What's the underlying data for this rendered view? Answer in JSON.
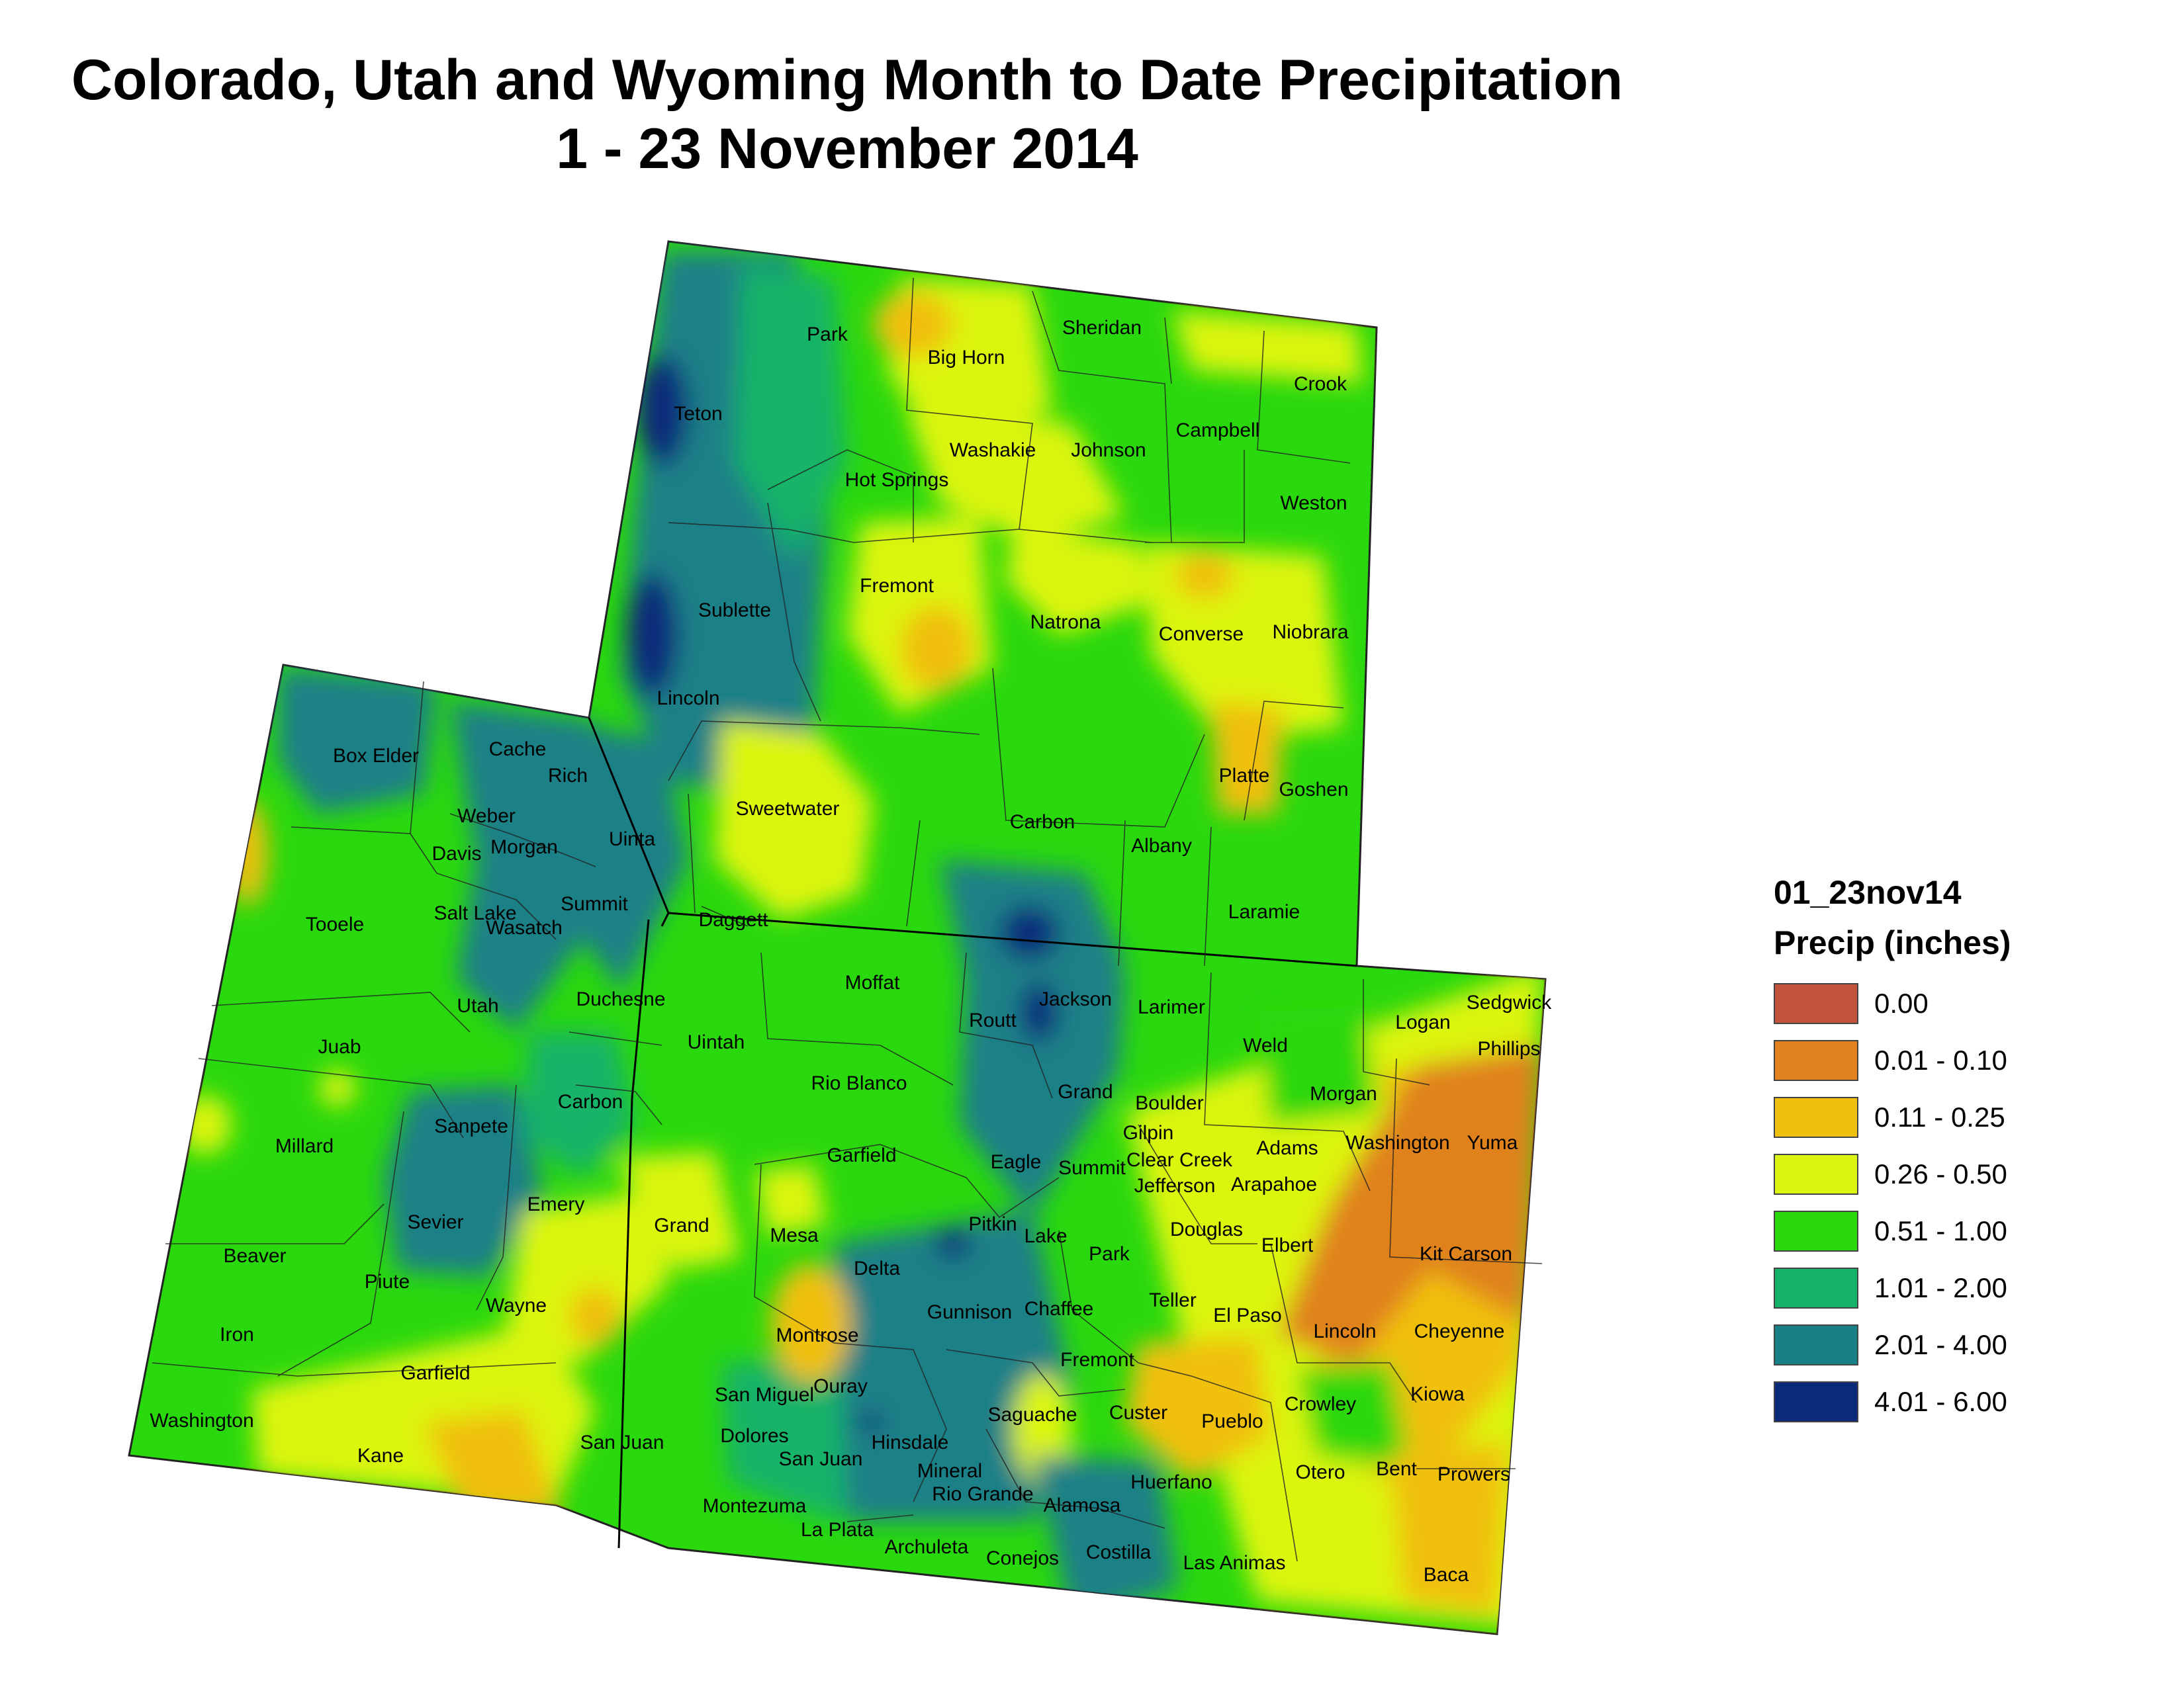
{
  "title": {
    "line1": "Colorado, Utah and Wyoming Month to Date Precipitation",
    "line2": "1 - 23 November 2014"
  },
  "legend": {
    "layer": "01_23nov14",
    "units": "Precip (inches)",
    "classes": [
      {
        "label": "0.00",
        "color": "#c2523c"
      },
      {
        "label": "0.01 - 0.10",
        "color": "#e0821e"
      },
      {
        "label": "0.11 - 0.25",
        "color": "#f0c00e"
      },
      {
        "label": "0.26 - 0.50",
        "color": "#dcf50e"
      },
      {
        "label": "0.51 - 1.00",
        "color": "#2ad80e"
      },
      {
        "label": "1.01 - 2.00",
        "color": "#14b368"
      },
      {
        "label": "2.01 - 4.00",
        "color": "#1a8087"
      },
      {
        "label": "4.01 - 6.00",
        "color": "#0c2a7a"
      }
    ]
  },
  "counties": {
    "wyoming": [
      "Park",
      "Big Horn",
      "Sheridan",
      "Crook",
      "Teton",
      "Campbell",
      "Washakie",
      "Johnson",
      "Hot Springs",
      "Weston",
      "Fremont",
      "Sublette",
      "Natrona",
      "Converse",
      "Niobrara",
      "Lincoln",
      "Platte",
      "Goshen",
      "Sweetwater",
      "Carbon",
      "Albany",
      "Uinta",
      "Laramie"
    ],
    "utah": [
      "Box Elder",
      "Cache",
      "Rich",
      "Weber",
      "Davis",
      "Morgan",
      "Tooele",
      "Salt Lake",
      "Summit",
      "Daggett",
      "Wasatch",
      "Utah",
      "Duchesne",
      "Uintah",
      "Juab",
      "Carbon",
      "Millard",
      "Sanpete",
      "Emery",
      "Sevier",
      "Grand",
      "Beaver",
      "Piute",
      "Wayne",
      "Iron",
      "Garfield",
      "San Juan",
      "Washington",
      "Kane"
    ],
    "colorado": [
      "Moffat",
      "Routt",
      "Jackson",
      "Larimer",
      "Logan",
      "Sedgwick",
      "Phillips",
      "Weld",
      "Rio Blanco",
      "Grand",
      "Boulder",
      "Morgan",
      "Gilpin",
      "Garfield",
      "Eagle",
      "Summit",
      "Clear Creek",
      "Adams",
      "Washington",
      "Yuma",
      "Jefferson",
      "Arapahoe",
      "Mesa",
      "Pitkin",
      "Lake",
      "Douglas",
      "Elbert",
      "Kit Carson",
      "Delta",
      "Park",
      "Teller",
      "El Paso",
      "Gunnison",
      "Chaffee",
      "Lincoln",
      "Cheyenne",
      "Montrose",
      "Fremont",
      "Crowley",
      "Kiowa",
      "San Miguel",
      "Ouray",
      "Saguache",
      "Custer",
      "Pueblo",
      "Dolores",
      "Hinsdale",
      "Otero",
      "Bent",
      "Prowers",
      "San Juan",
      "Mineral",
      "Huerfano",
      "Rio Grande",
      "Alamosa",
      "Montezuma",
      "La Plata",
      "Archuleta",
      "Conejos",
      "Costilla",
      "Las Animas",
      "Baca"
    ]
  }
}
